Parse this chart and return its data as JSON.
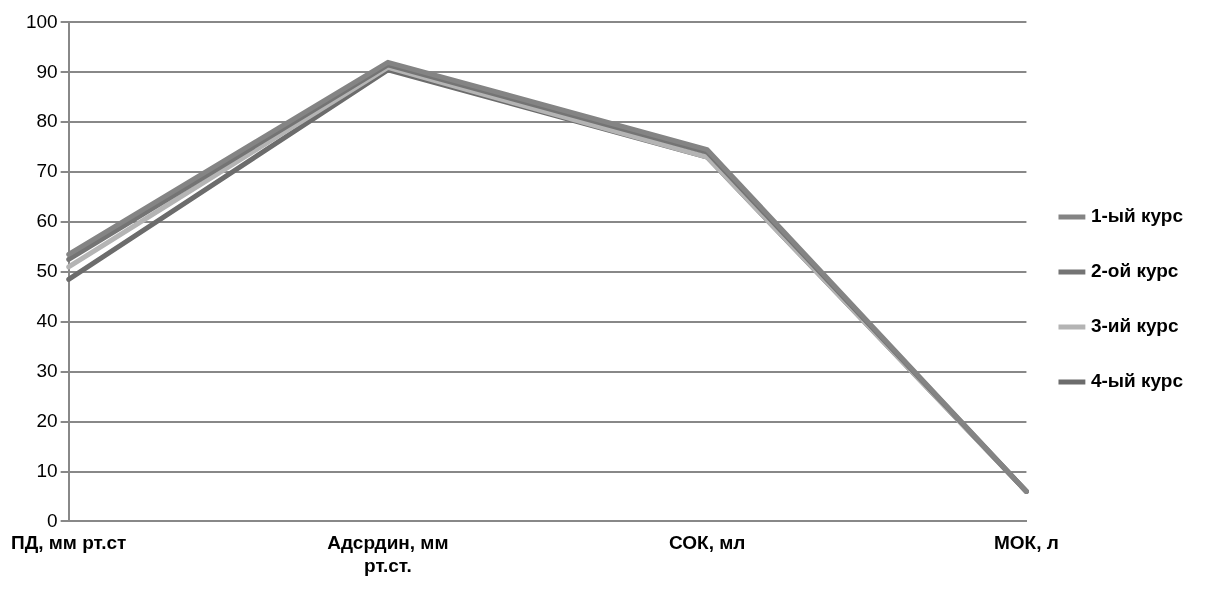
{
  "chart_data": {
    "type": "line",
    "categories": [
      "ПД, мм рт.ст",
      "Адсрдин, мм рт.ст.",
      "СОК, мл",
      "МОК, л"
    ],
    "series": [
      {
        "name": "1-ый курс",
        "color": "#848484",
        "values": [
          53.5,
          92,
          74.5,
          6
        ]
      },
      {
        "name": "2-ой курс",
        "color": "#747474",
        "values": [
          52.5,
          91.5,
          74,
          6
        ]
      },
      {
        "name": "3-ий курс",
        "color": "#b4b4b4",
        "values": [
          51,
          91,
          73,
          6
        ]
      },
      {
        "name": "4-ый курс",
        "color": "#6c6c6c",
        "values": [
          48.5,
          90.5,
          73,
          6
        ]
      }
    ],
    "ylim": [
      0,
      100
    ],
    "yticks": [
      0,
      10,
      20,
      30,
      40,
      50,
      60,
      70,
      80,
      90,
      100
    ],
    "grid": "y",
    "legend": "right",
    "marker": "none",
    "line_style": "solid"
  }
}
